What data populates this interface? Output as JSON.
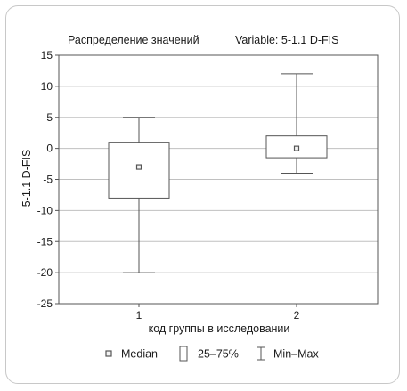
{
  "chart_data": {
    "type": "boxplot",
    "title": "Распределение значений",
    "subtitle": "Variable: 5-1.1 D-FIS",
    "xlabel": "код группы в исследовании",
    "ylabel": "5-1.1 D-FIS",
    "ylim": [
      -25,
      15
    ],
    "yticks": [
      15,
      10,
      5,
      0,
      -5,
      -10,
      -15,
      -20,
      -25
    ],
    "ytick_labels": [
      "15",
      "10",
      "5",
      "0",
      "-5",
      "-10",
      "-15",
      "-20",
      "-25"
    ],
    "grid": true,
    "legend_position": "bottom",
    "categories": [
      "1",
      "2"
    ],
    "groups": [
      {
        "category": "1",
        "median": -3,
        "q1": -8,
        "q3": 1,
        "min": -20,
        "max": 5
      },
      {
        "category": "2",
        "median": 0,
        "q1": -1.5,
        "q3": 2,
        "min": -4,
        "max": 12
      }
    ],
    "legend": [
      {
        "key": "median",
        "label": "Median"
      },
      {
        "key": "box",
        "label": "25–75%"
      },
      {
        "key": "whisker",
        "label": "Min–Max"
      }
    ],
    "colors": {
      "box_stroke": "#555555",
      "grid": "#c0c0c0",
      "axis": "#555555",
      "median_fill": "#f3f3f3"
    }
  }
}
